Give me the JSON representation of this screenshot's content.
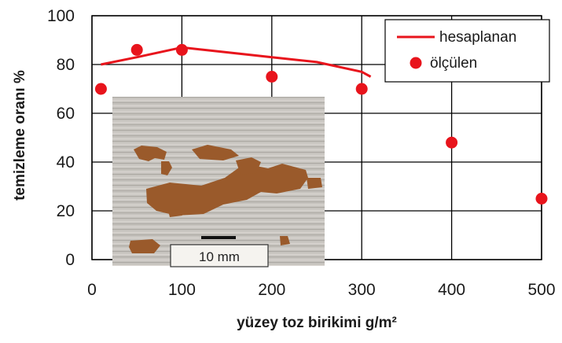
{
  "chart_data": {
    "type": "scatter",
    "title": "",
    "xlabel": "yüzey toz birikimi g/m²",
    "ylabel": "temizleme oranı %",
    "xlim": [
      0,
      500
    ],
    "ylim": [
      0,
      100
    ],
    "x_ticks": [
      "0",
      "100",
      "200",
      "300",
      "400",
      "500"
    ],
    "y_ticks": [
      "0",
      "20",
      "40",
      "60",
      "80",
      "100"
    ],
    "grid": true,
    "legend_position": "top-right",
    "colors": {
      "series": "#e8141c",
      "grid": "#000000"
    },
    "series": [
      {
        "name": "hesaplanan",
        "type": "line",
        "points": [
          {
            "x": 10,
            "y": 80
          },
          {
            "x": 50,
            "y": 83
          },
          {
            "x": 100,
            "y": 87
          },
          {
            "x": 150,
            "y": 85
          },
          {
            "x": 200,
            "y": 83
          },
          {
            "x": 250,
            "y": 81
          },
          {
            "x": 300,
            "y": 77
          },
          {
            "x": 310,
            "y": 75
          }
        ]
      },
      {
        "name": "ölçülen",
        "type": "scatter",
        "points": [
          {
            "x": 10,
            "y": 70
          },
          {
            "x": 50,
            "y": 86
          },
          {
            "x": 100,
            "y": 86
          },
          {
            "x": 200,
            "y": 75
          },
          {
            "x": 300,
            "y": 70
          },
          {
            "x": 400,
            "y": 48
          },
          {
            "x": 500,
            "y": 25
          }
        ]
      }
    ]
  },
  "inset_photo": {
    "scale_label": "10 mm",
    "description_icon": "dust-deposit-photo"
  }
}
